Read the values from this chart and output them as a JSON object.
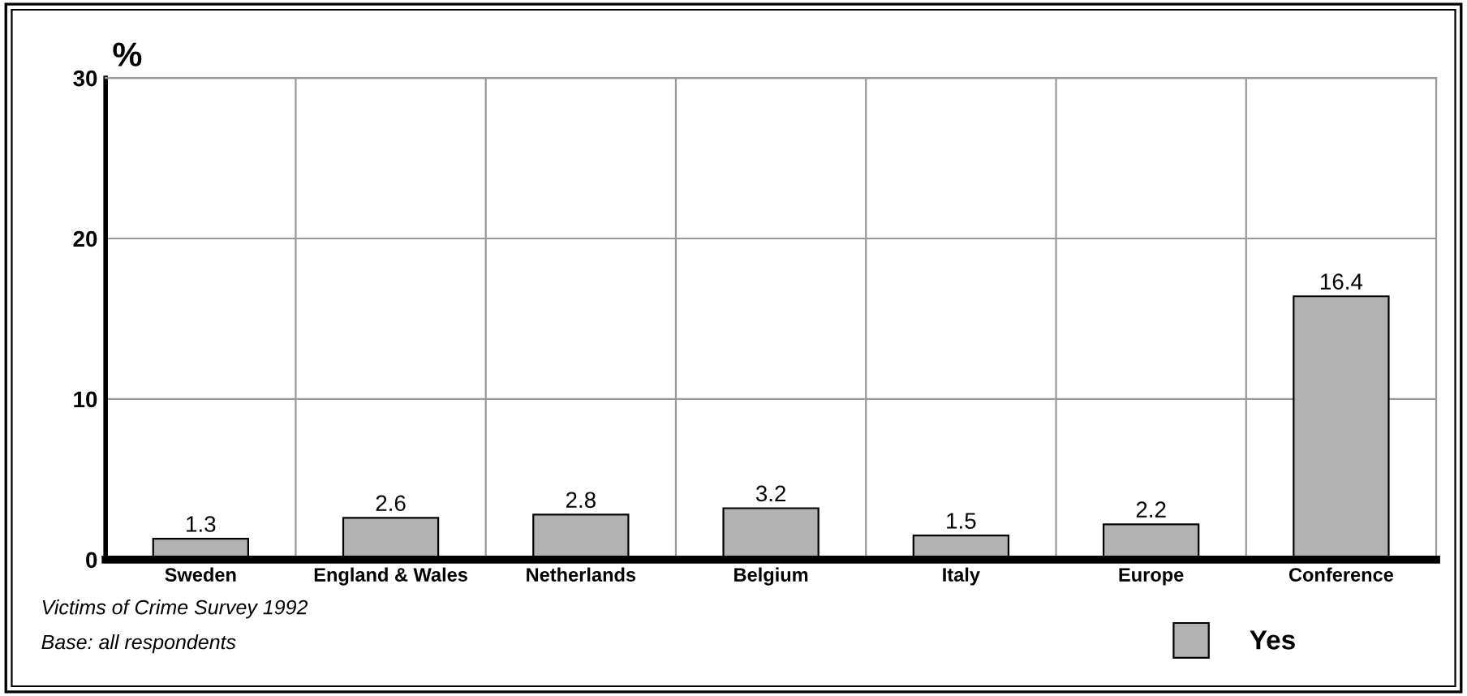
{
  "chart_data": {
    "type": "bar",
    "ylabel": "%",
    "categories": [
      "Sweden",
      "England & Wales",
      "Netherlands",
      "Belgium",
      "Italy",
      "Europe",
      "Conference"
    ],
    "series": [
      {
        "name": "Yes",
        "color": "#b2b2b2",
        "values": [
          1.3,
          2.6,
          2.8,
          3.2,
          1.5,
          2.2,
          16.4
        ]
      }
    ],
    "ylim": [
      0,
      30
    ],
    "yticks": [
      0,
      10,
      20,
      30
    ],
    "grid": true,
    "data_labels": true,
    "legend": "bottom right",
    "annotations": [
      "Victims of Crime Survey 1992",
      "Base: all respondents"
    ]
  }
}
